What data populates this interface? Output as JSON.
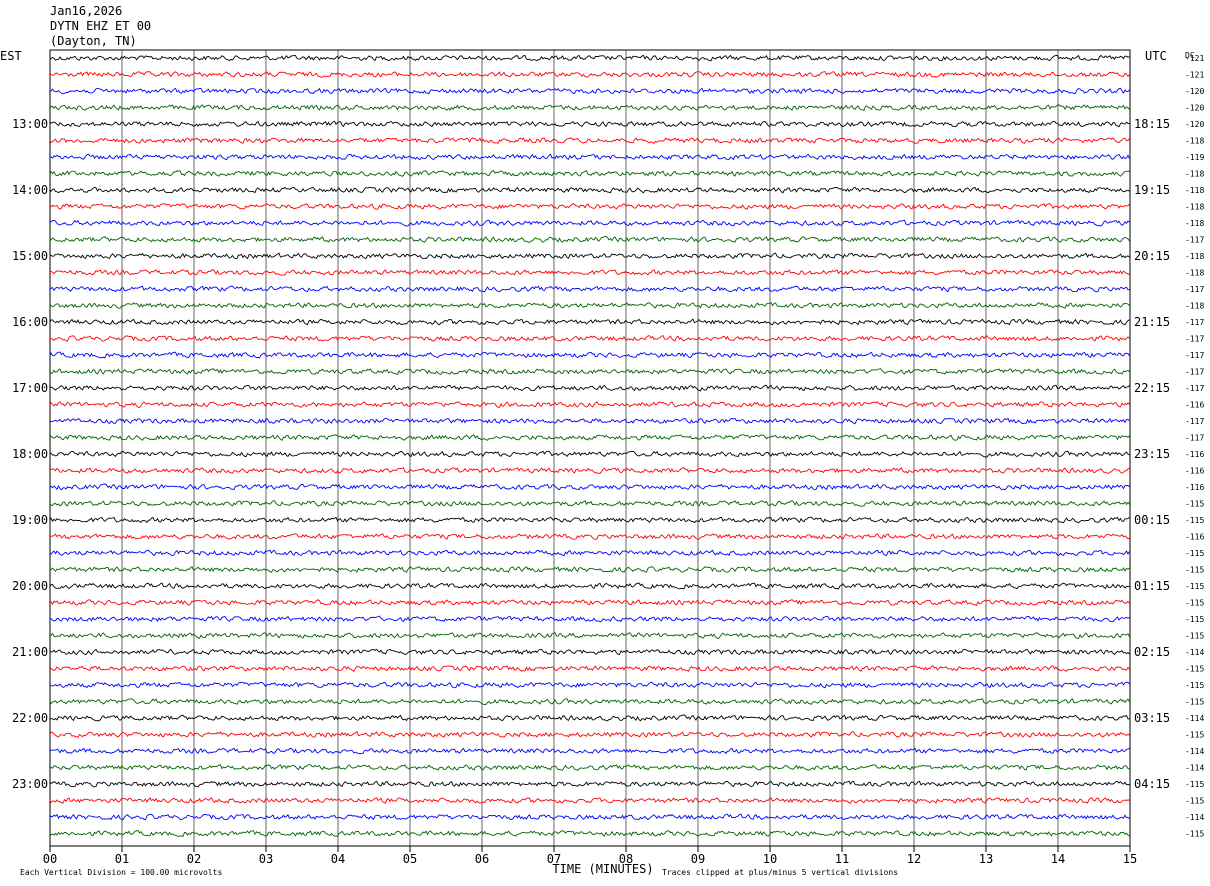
{
  "header": {
    "date": "Jan16,2026",
    "station": "DYTN EHZ ET 00",
    "location": "(Dayton, TN)"
  },
  "chart_data": {
    "type": "line",
    "title": "DYTN EHZ ET 00",
    "left_axis_label": "EST",
    "right_axis_label": "UTC",
    "dc_label": "DC",
    "xlabel": "TIME (MINUTES)",
    "xlim": [
      0,
      15
    ],
    "x_ticks": [
      "00",
      "01",
      "02",
      "03",
      "04",
      "05",
      "06",
      "07",
      "08",
      "09",
      "10",
      "11",
      "12",
      "13",
      "14",
      "15"
    ],
    "left_hour_labels": [
      "13:00",
      "14:00",
      "15:00",
      "16:00",
      "17:00",
      "18:00",
      "19:00",
      "20:00",
      "21:00",
      "22:00",
      "23:00"
    ],
    "right_hour_labels": [
      "18:15",
      "19:15",
      "20:15",
      "21:15",
      "22:15",
      "23:15",
      "00:15",
      "01:15",
      "02:15",
      "03:15",
      "04:15"
    ],
    "trace_colors": [
      "#000000",
      "#ff0000",
      "#0000ff",
      "#006400"
    ],
    "dc_offsets": [
      "-121",
      "-121",
      "-120",
      "-120",
      "-120",
      "-118",
      "-119",
      "-118",
      "-118",
      "-118",
      "-118",
      "-117",
      "-118",
      "-118",
      "-117",
      "-118",
      "-117",
      "-117",
      "-117",
      "-117",
      "-117",
      "-116",
      "-117",
      "-117",
      "-116",
      "-116",
      "-116",
      "-115",
      "-115",
      "-116",
      "-115",
      "-115",
      "-115",
      "-115",
      "-115",
      "-115",
      "-114",
      "-115",
      "-115",
      "-115",
      "-114",
      "-115",
      "-114",
      "-114",
      "-115",
      "-115",
      "-114",
      "-115"
    ],
    "footer_left": "Each Vertical Division =  100.00 microvolts",
    "footer_right": "Traces clipped at plus/minus 5 vertical divisions",
    "grid": true
  }
}
